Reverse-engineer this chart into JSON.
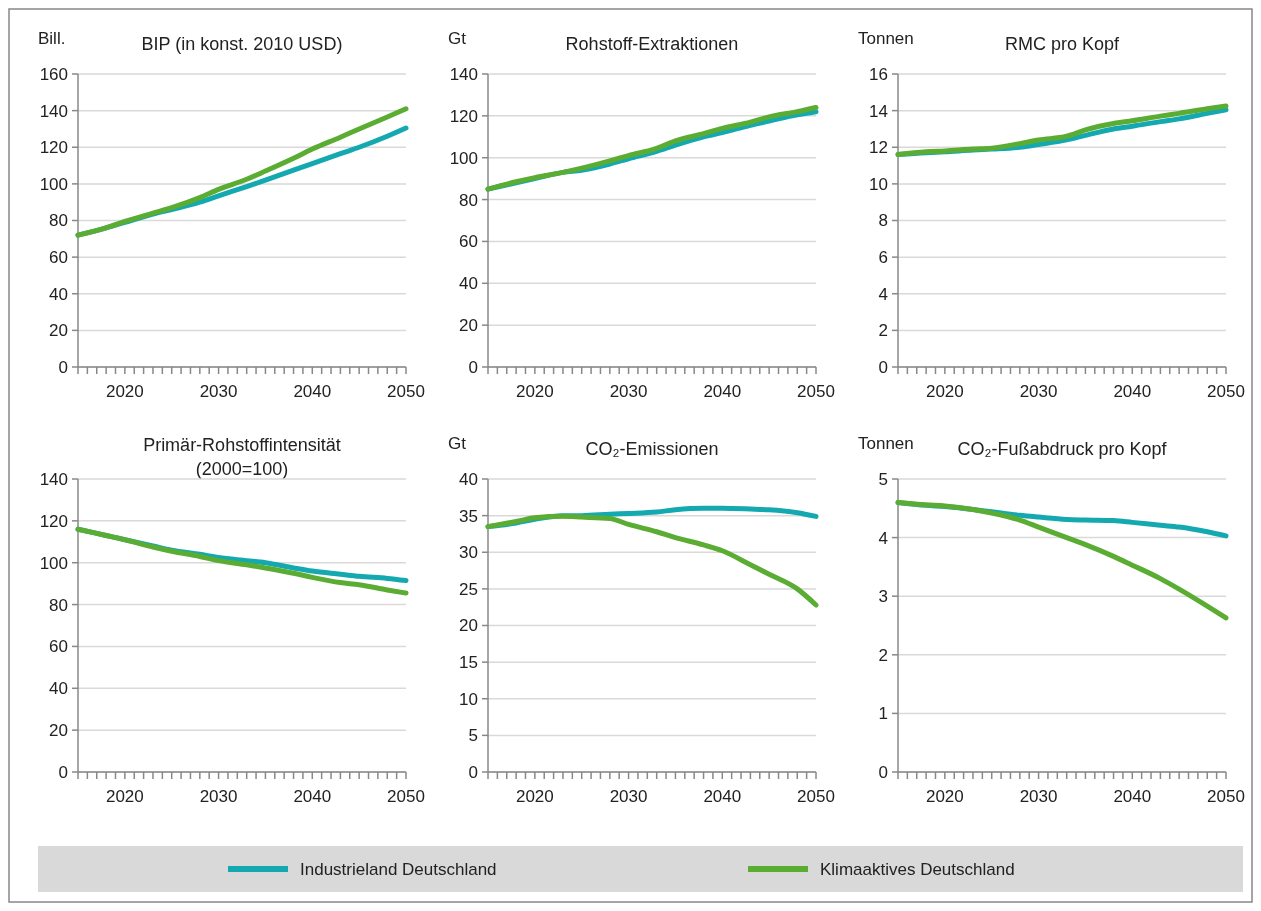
{
  "chart_data": [
    {
      "type": "line",
      "title": "BIP (in konst. 2010 USD)",
      "ylabel": "Bill.",
      "x": [
        2015,
        2018,
        2020,
        2023,
        2025,
        2028,
        2030,
        2033,
        2035,
        2038,
        2040,
        2043,
        2045,
        2048,
        2050
      ],
      "xlim": [
        2015,
        2050
      ],
      "xticks": [
        {
          "value": 2015,
          "label": null
        },
        {
          "value": 2016,
          "label": null
        },
        {
          "value": 2017,
          "label": null
        },
        {
          "value": 2018,
          "label": null
        },
        {
          "value": 2019,
          "label": null
        },
        2020,
        {
          "value": 2021,
          "label": null
        },
        {
          "value": 2022,
          "label": null
        },
        {
          "value": 2023,
          "label": null
        },
        {
          "value": 2024,
          "label": null
        },
        {
          "value": 2025,
          "label": null
        },
        {
          "value": 2026,
          "label": null
        },
        {
          "value": 2027,
          "label": null
        },
        {
          "value": 2028,
          "label": null
        },
        {
          "value": 2029,
          "label": null
        },
        2030,
        {
          "value": 2031,
          "label": null
        },
        {
          "value": 2032,
          "label": null
        },
        {
          "value": 2033,
          "label": null
        },
        {
          "value": 2034,
          "label": null
        },
        {
          "value": 2035,
          "label": null
        },
        {
          "value": 2036,
          "label": null
        },
        {
          "value": 2037,
          "label": null
        },
        {
          "value": 2038,
          "label": null
        },
        {
          "value": 2039,
          "label": null
        },
        2040,
        {
          "value": 2041,
          "label": null
        },
        {
          "value": 2042,
          "label": null
        },
        {
          "value": 2043,
          "label": null
        },
        {
          "value": 2044,
          "label": null
        },
        {
          "value": 2045,
          "label": null
        },
        {
          "value": 2046,
          "label": null
        },
        {
          "value": 2047,
          "label": null
        },
        {
          "value": 2048,
          "label": null
        },
        {
          "value": 2049,
          "label": null
        },
        2050
      ],
      "ylim": [
        0,
        160
      ],
      "yticks": [
        0,
        20,
        40,
        60,
        80,
        100,
        120,
        140,
        160
      ],
      "grid": "y",
      "legend": "bottom",
      "marker": "none",
      "series": [
        {
          "name": "Industrieland Deutschland",
          "color": "#14a9b0",
          "values": [
            72,
            76,
            79,
            83.5,
            86,
            90,
            93.5,
            98.5,
            102,
            107.5,
            111,
            116.5,
            120,
            126,
            130.5
          ]
        },
        {
          "name": "Klimaaktives Deutschland",
          "color": "#5aad32",
          "values": [
            72,
            76,
            79.5,
            84,
            87,
            92.5,
            97,
            102.5,
            107,
            114,
            119,
            125.5,
            130,
            136.5,
            141
          ]
        }
      ]
    },
    {
      "type": "line",
      "title": "Rohstoff-Extraktionen",
      "ylabel": "Gt",
      "x": [
        2015,
        2018,
        2020,
        2023,
        2025,
        2028,
        2030,
        2033,
        2035,
        2038,
        2040,
        2043,
        2045,
        2048,
        2050
      ],
      "xlim": [
        2015,
        2050
      ],
      "xticks": [
        {
          "value": 2015,
          "label": null
        },
        {
          "value": 2016,
          "label": null
        },
        {
          "value": 2017,
          "label": null
        },
        {
          "value": 2018,
          "label": null
        },
        {
          "value": 2019,
          "label": null
        },
        2020,
        {
          "value": 2021,
          "label": null
        },
        {
          "value": 2022,
          "label": null
        },
        {
          "value": 2023,
          "label": null
        },
        {
          "value": 2024,
          "label": null
        },
        {
          "value": 2025,
          "label": null
        },
        {
          "value": 2026,
          "label": null
        },
        {
          "value": 2027,
          "label": null
        },
        {
          "value": 2028,
          "label": null
        },
        {
          "value": 2029,
          "label": null
        },
        2030,
        {
          "value": 2031,
          "label": null
        },
        {
          "value": 2032,
          "label": null
        },
        {
          "value": 2033,
          "label": null
        },
        {
          "value": 2034,
          "label": null
        },
        {
          "value": 2035,
          "label": null
        },
        {
          "value": 2036,
          "label": null
        },
        {
          "value": 2037,
          "label": null
        },
        {
          "value": 2038,
          "label": null
        },
        {
          "value": 2039,
          "label": null
        },
        2040,
        {
          "value": 2041,
          "label": null
        },
        {
          "value": 2042,
          "label": null
        },
        {
          "value": 2043,
          "label": null
        },
        {
          "value": 2044,
          "label": null
        },
        {
          "value": 2045,
          "label": null
        },
        {
          "value": 2046,
          "label": null
        },
        {
          "value": 2047,
          "label": null
        },
        {
          "value": 2048,
          "label": null
        },
        {
          "value": 2049,
          "label": null
        },
        2050
      ],
      "ylim": [
        0,
        140
      ],
      "yticks": [
        0,
        20,
        40,
        60,
        80,
        100,
        120,
        140
      ],
      "grid": "y",
      "marker": "none",
      "series": [
        {
          "color": "#14a9b0",
          "values": [
            85,
            88,
            90,
            93,
            94,
            97,
            99.5,
            103,
            106,
            110,
            112,
            115.5,
            117.5,
            120.5,
            122
          ]
        },
        {
          "color": "#5aad32",
          "values": [
            85,
            88.5,
            90.5,
            93,
            95,
            98.5,
            101,
            104.5,
            108,
            111.5,
            114,
            117,
            119.5,
            122,
            124
          ]
        }
      ]
    },
    {
      "type": "line",
      "title": "RMC pro Kopf",
      "ylabel": "Tonnen",
      "x": [
        2015,
        2018,
        2020,
        2023,
        2025,
        2028,
        2030,
        2033,
        2035,
        2038,
        2040,
        2043,
        2045,
        2048,
        2050
      ],
      "xlim": [
        2015,
        2050
      ],
      "xticks": [
        {
          "value": 2015,
          "label": null
        },
        {
          "value": 2016,
          "label": null
        },
        {
          "value": 2017,
          "label": null
        },
        {
          "value": 2018,
          "label": null
        },
        {
          "value": 2019,
          "label": null
        },
        2020,
        {
          "value": 2021,
          "label": null
        },
        {
          "value": 2022,
          "label": null
        },
        {
          "value": 2023,
          "label": null
        },
        {
          "value": 2024,
          "label": null
        },
        {
          "value": 2025,
          "label": null
        },
        {
          "value": 2026,
          "label": null
        },
        {
          "value": 2027,
          "label": null
        },
        {
          "value": 2028,
          "label": null
        },
        {
          "value": 2029,
          "label": null
        },
        2030,
        {
          "value": 2031,
          "label": null
        },
        {
          "value": 2032,
          "label": null
        },
        {
          "value": 2033,
          "label": null
        },
        {
          "value": 2034,
          "label": null
        },
        {
          "value": 2035,
          "label": null
        },
        {
          "value": 2036,
          "label": null
        },
        {
          "value": 2037,
          "label": null
        },
        {
          "value": 2038,
          "label": null
        },
        {
          "value": 2039,
          "label": null
        },
        2040,
        {
          "value": 2041,
          "label": null
        },
        {
          "value": 2042,
          "label": null
        },
        {
          "value": 2043,
          "label": null
        },
        {
          "value": 2044,
          "label": null
        },
        {
          "value": 2045,
          "label": null
        },
        {
          "value": 2046,
          "label": null
        },
        {
          "value": 2047,
          "label": null
        },
        {
          "value": 2048,
          "label": null
        },
        {
          "value": 2049,
          "label": null
        },
        2050
      ],
      "ylim": [
        0,
        16
      ],
      "yticks": [
        0,
        2,
        4,
        6,
        8,
        10,
        12,
        14,
        16
      ],
      "grid": "y",
      "marker": "none",
      "series": [
        {
          "color": "#14a9b0",
          "values": [
            11.6,
            11.7,
            11.75,
            11.85,
            11.9,
            12.0,
            12.15,
            12.4,
            12.65,
            13.0,
            13.15,
            13.4,
            13.55,
            13.85,
            14.05
          ]
        },
        {
          "color": "#5aad32",
          "values": [
            11.6,
            11.75,
            11.8,
            11.9,
            11.95,
            12.2,
            12.4,
            12.6,
            12.95,
            13.3,
            13.45,
            13.7,
            13.85,
            14.1,
            14.25
          ]
        }
      ]
    },
    {
      "type": "line",
      "title": "Primär-Rohstoffintensität\n(2000=100)",
      "x": [
        2015,
        2018,
        2020,
        2023,
        2025,
        2028,
        2030,
        2033,
        2035,
        2038,
        2040,
        2043,
        2045,
        2048,
        2050
      ],
      "xlim": [
        2015,
        2050
      ],
      "xticks": [
        {
          "value": 2015,
          "label": null
        },
        {
          "value": 2016,
          "label": null
        },
        {
          "value": 2017,
          "label": null
        },
        {
          "value": 2018,
          "label": null
        },
        {
          "value": 2019,
          "label": null
        },
        2020,
        {
          "value": 2021,
          "label": null
        },
        {
          "value": 2022,
          "label": null
        },
        {
          "value": 2023,
          "label": null
        },
        {
          "value": 2024,
          "label": null
        },
        {
          "value": 2025,
          "label": null
        },
        {
          "value": 2026,
          "label": null
        },
        {
          "value": 2027,
          "label": null
        },
        {
          "value": 2028,
          "label": null
        },
        {
          "value": 2029,
          "label": null
        },
        2030,
        {
          "value": 2031,
          "label": null
        },
        {
          "value": 2032,
          "label": null
        },
        {
          "value": 2033,
          "label": null
        },
        {
          "value": 2034,
          "label": null
        },
        {
          "value": 2035,
          "label": null
        },
        {
          "value": 2036,
          "label": null
        },
        {
          "value": 2037,
          "label": null
        },
        {
          "value": 2038,
          "label": null
        },
        {
          "value": 2039,
          "label": null
        },
        2040,
        {
          "value": 2041,
          "label": null
        },
        {
          "value": 2042,
          "label": null
        },
        {
          "value": 2043,
          "label": null
        },
        {
          "value": 2044,
          "label": null
        },
        {
          "value": 2045,
          "label": null
        },
        {
          "value": 2046,
          "label": null
        },
        {
          "value": 2047,
          "label": null
        },
        {
          "value": 2048,
          "label": null
        },
        {
          "value": 2049,
          "label": null
        },
        2050
      ],
      "ylim": [
        0,
        140
      ],
      "yticks": [
        0,
        20,
        40,
        60,
        80,
        100,
        120,
        140
      ],
      "grid": "y",
      "marker": "none",
      "series": [
        {
          "color": "#14a9b0",
          "values": [
            116,
            113,
            111,
            108,
            106,
            104,
            102.5,
            101,
            100,
            97.5,
            96,
            94.5,
            93.5,
            92.5,
            91.5
          ]
        },
        {
          "color": "#5aad32",
          "values": [
            116,
            113,
            111,
            107.5,
            105.5,
            103,
            101,
            99,
            97.5,
            95,
            93,
            90.5,
            89.5,
            87,
            85.5
          ]
        }
      ]
    },
    {
      "type": "line",
      "title": "CO₂-Emissionen",
      "ylabel": "Gt",
      "x": [
        2015,
        2018,
        2020,
        2023,
        2025,
        2028,
        2030,
        2033,
        2035,
        2038,
        2040,
        2043,
        2045,
        2048,
        2050
      ],
      "xlim": [
        2015,
        2050
      ],
      "xticks": [
        {
          "value": 2015,
          "label": null
        },
        {
          "value": 2016,
          "label": null
        },
        {
          "value": 2017,
          "label": null
        },
        {
          "value": 2018,
          "label": null
        },
        {
          "value": 2019,
          "label": null
        },
        2020,
        {
          "value": 2021,
          "label": null
        },
        {
          "value": 2022,
          "label": null
        },
        {
          "value": 2023,
          "label": null
        },
        {
          "value": 2024,
          "label": null
        },
        {
          "value": 2025,
          "label": null
        },
        {
          "value": 2026,
          "label": null
        },
        {
          "value": 2027,
          "label": null
        },
        {
          "value": 2028,
          "label": null
        },
        {
          "value": 2029,
          "label": null
        },
        2030,
        {
          "value": 2031,
          "label": null
        },
        {
          "value": 2032,
          "label": null
        },
        {
          "value": 2033,
          "label": null
        },
        {
          "value": 2034,
          "label": null
        },
        {
          "value": 2035,
          "label": null
        },
        {
          "value": 2036,
          "label": null
        },
        {
          "value": 2037,
          "label": null
        },
        {
          "value": 2038,
          "label": null
        },
        {
          "value": 2039,
          "label": null
        },
        2040,
        {
          "value": 2041,
          "label": null
        },
        {
          "value": 2042,
          "label": null
        },
        {
          "value": 2043,
          "label": null
        },
        {
          "value": 2044,
          "label": null
        },
        {
          "value": 2045,
          "label": null
        },
        {
          "value": 2046,
          "label": null
        },
        {
          "value": 2047,
          "label": null
        },
        {
          "value": 2048,
          "label": null
        },
        {
          "value": 2049,
          "label": null
        },
        2050
      ],
      "ylim": [
        0,
        40
      ],
      "yticks": [
        0,
        5,
        10,
        15,
        20,
        25,
        30,
        35,
        40
      ],
      "grid": "y",
      "marker": "none",
      "series": [
        {
          "color": "#14a9b0",
          "values": [
            33.5,
            34,
            34.5,
            35,
            35,
            35.2,
            35.3,
            35.5,
            35.8,
            36,
            36,
            35.9,
            35.8,
            35.4,
            34.9
          ]
        },
        {
          "color": "#5aad32",
          "values": [
            33.5,
            34.2,
            34.7,
            34.9,
            34.8,
            34.6,
            33.8,
            32.8,
            32,
            31,
            30.2,
            28.3,
            27,
            25,
            22.8
          ]
        }
      ]
    },
    {
      "type": "line",
      "title": "CO₂-Fußabdruck pro Kopf",
      "ylabel": "Tonnen",
      "x": [
        2015,
        2018,
        2020,
        2023,
        2025,
        2028,
        2030,
        2033,
        2035,
        2038,
        2040,
        2043,
        2045,
        2048,
        2050
      ],
      "xlim": [
        2015,
        2050
      ],
      "xticks": [
        {
          "value": 2015,
          "label": null
        },
        {
          "value": 2016,
          "label": null
        },
        {
          "value": 2017,
          "label": null
        },
        {
          "value": 2018,
          "label": null
        },
        {
          "value": 2019,
          "label": null
        },
        2020,
        {
          "value": 2021,
          "label": null
        },
        {
          "value": 2022,
          "label": null
        },
        {
          "value": 2023,
          "label": null
        },
        {
          "value": 2024,
          "label": null
        },
        {
          "value": 2025,
          "label": null
        },
        {
          "value": 2026,
          "label": null
        },
        {
          "value": 2027,
          "label": null
        },
        {
          "value": 2028,
          "label": null
        },
        {
          "value": 2029,
          "label": null
        },
        2030,
        {
          "value": 2031,
          "label": null
        },
        {
          "value": 2032,
          "label": null
        },
        {
          "value": 2033,
          "label": null
        },
        {
          "value": 2034,
          "label": null
        },
        {
          "value": 2035,
          "label": null
        },
        {
          "value": 2036,
          "label": null
        },
        {
          "value": 2037,
          "label": null
        },
        {
          "value": 2038,
          "label": null
        },
        {
          "value": 2039,
          "label": null
        },
        2040,
        {
          "value": 2041,
          "label": null
        },
        {
          "value": 2042,
          "label": null
        },
        {
          "value": 2043,
          "label": null
        },
        {
          "value": 2044,
          "label": null
        },
        {
          "value": 2045,
          "label": null
        },
        {
          "value": 2046,
          "label": null
        },
        {
          "value": 2047,
          "label": null
        },
        {
          "value": 2048,
          "label": null
        },
        {
          "value": 2049,
          "label": null
        },
        2050
      ],
      "ylim": [
        0,
        5
      ],
      "yticks": [
        0,
        1,
        2,
        3,
        4,
        5
      ],
      "grid": "y",
      "marker": "none",
      "series": [
        {
          "color": "#14a9b0",
          "values": [
            4.6,
            4.55,
            4.53,
            4.48,
            4.44,
            4.38,
            4.35,
            4.31,
            4.3,
            4.29,
            4.26,
            4.21,
            4.18,
            4.1,
            4.03
          ]
        },
        {
          "color": "#5aad32",
          "values": [
            4.6,
            4.56,
            4.54,
            4.48,
            4.42,
            4.3,
            4.18,
            4.0,
            3.88,
            3.68,
            3.53,
            3.3,
            3.12,
            2.83,
            2.63
          ]
        }
      ]
    }
  ]
}
